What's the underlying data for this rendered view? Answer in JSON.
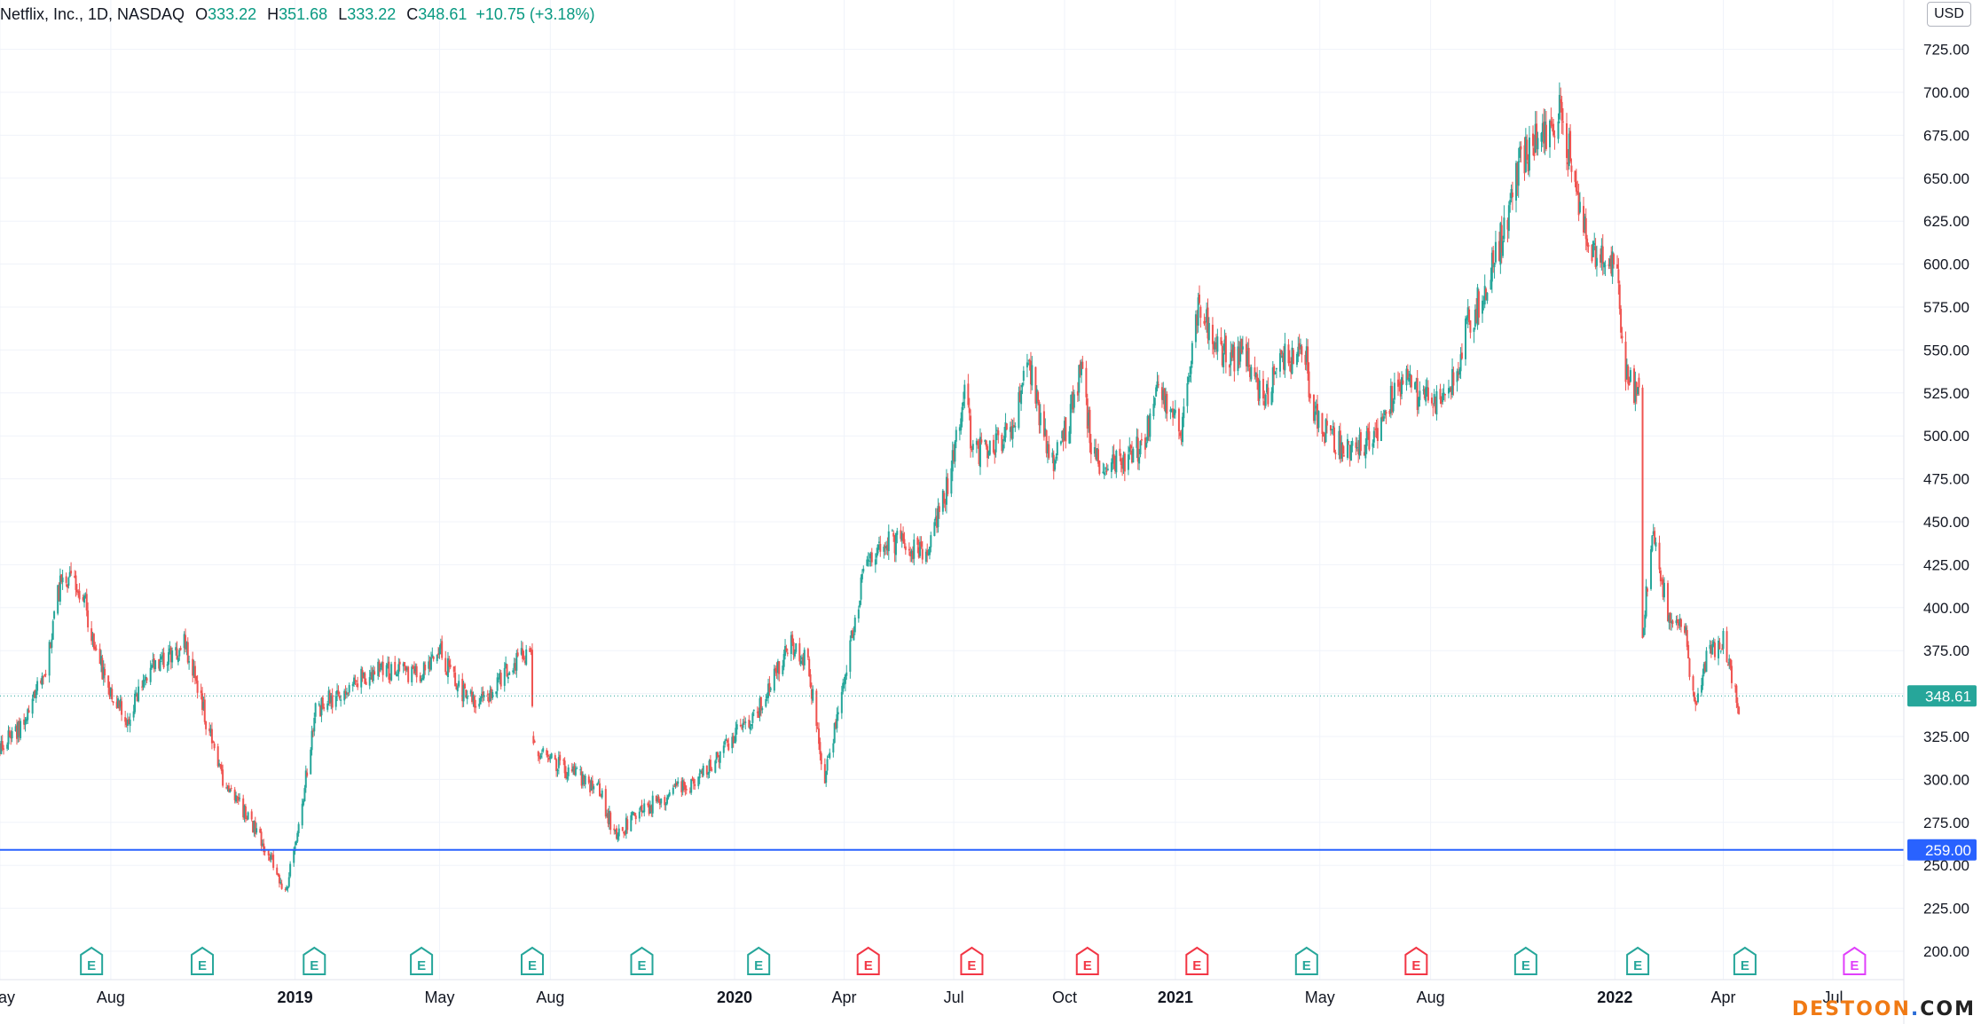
{
  "header": {
    "symbol": "Netflix, Inc., 1D, NASDAQ",
    "open_label": "O",
    "open": "333.22",
    "high_label": "H",
    "high": "351.68",
    "low_label": "L",
    "low": "333.22",
    "close_label": "C",
    "close": "348.61",
    "change": "+10.75 (+3.18%)"
  },
  "currency": "USD",
  "watermark": {
    "main": "DESTOON",
    "dot": ".",
    "tld": "COM"
  },
  "colors": {
    "up": "#26a69a",
    "down": "#ef5350",
    "grid": "#f0f3fa",
    "axis_text": "#131722",
    "price_line": "#26a69a",
    "horizontal_line": "#2962ff",
    "earnings_past": "#26a69a",
    "earnings_future": "#e040fb",
    "earnings_miss": "#f23645"
  },
  "chart_data": {
    "type": "candlestick",
    "x_range": [
      "2018-05",
      "2022-07"
    ],
    "ylim": [
      190,
      732
    ],
    "y_ticks": [
      200,
      225,
      250,
      275,
      300,
      325,
      350,
      375,
      400,
      425,
      450,
      475,
      500,
      525,
      550,
      575,
      600,
      625,
      650,
      675,
      700,
      725
    ],
    "y_tick_labels": [
      "200.00",
      "225.00",
      "250.00",
      "275.00",
      "300.00",
      "325.00",
      "350.00",
      "375.00",
      "400.00",
      "425.00",
      "450.00",
      "475.00",
      "500.00",
      "525.00",
      "550.00",
      "575.00",
      "600.00",
      "625.00",
      "650.00",
      "675.00",
      "700.00",
      "725.00"
    ],
    "x_ticks": [
      {
        "date": "2018-05",
        "label": "May",
        "bold": false
      },
      {
        "date": "2018-08",
        "label": "Aug",
        "bold": false
      },
      {
        "date": "2019-01",
        "label": "2019",
        "bold": true
      },
      {
        "date": "2019-05",
        "label": "May",
        "bold": false
      },
      {
        "date": "2019-08",
        "label": "Aug",
        "bold": false
      },
      {
        "date": "2020-01",
        "label": "2020",
        "bold": true
      },
      {
        "date": "2020-04",
        "label": "Apr",
        "bold": false
      },
      {
        "date": "2020-07",
        "label": "Jul",
        "bold": false
      },
      {
        "date": "2020-10",
        "label": "Oct",
        "bold": false
      },
      {
        "date": "2021-01",
        "label": "2021",
        "bold": true
      },
      {
        "date": "2021-05",
        "label": "May",
        "bold": false
      },
      {
        "date": "2021-08",
        "label": "Aug",
        "bold": false
      },
      {
        "date": "2022-01",
        "label": "2022",
        "bold": true
      },
      {
        "date": "2022-04",
        "label": "Apr",
        "bold": false
      },
      {
        "date": "2022-07",
        "label": "Jul",
        "bold": false
      }
    ],
    "price_anchors": [
      [
        "2018-05",
        320
      ],
      [
        "2018-05-20",
        330
      ],
      [
        "2018-06-10",
        370
      ],
      [
        "2018-06-21",
        420
      ],
      [
        "2018-07-10",
        405
      ],
      [
        "2018-07-17",
        380
      ],
      [
        "2018-07-30",
        355
      ],
      [
        "2018-08-15",
        335
      ],
      [
        "2018-09-01",
        365
      ],
      [
        "2018-09-15",
        370
      ],
      [
        "2018-10-01",
        380
      ],
      [
        "2018-10-15",
        345
      ],
      [
        "2018-11-01",
        300
      ],
      [
        "2018-12-01",
        270
      ],
      [
        "2018-12-24",
        235
      ],
      [
        "2019-01-04",
        270
      ],
      [
        "2019-01-18",
        340
      ],
      [
        "2019-02-15",
        355
      ],
      [
        "2019-03-15",
        365
      ],
      [
        "2019-04-15",
        360
      ],
      [
        "2019-05-01",
        375
      ],
      [
        "2019-05-20",
        350
      ],
      [
        "2019-06-10",
        345
      ],
      [
        "2019-06-25",
        365
      ],
      [
        "2019-07-16",
        375
      ],
      [
        "2019-07-18",
        320
      ],
      [
        "2019-08-15",
        305
      ],
      [
        "2019-09-10",
        295
      ],
      [
        "2019-09-25",
        265
      ],
      [
        "2019-10-10",
        280
      ],
      [
        "2019-11-05",
        290
      ],
      [
        "2019-12-01",
        300
      ],
      [
        "2019-12-31",
        325
      ],
      [
        "2020-01-20",
        340
      ],
      [
        "2020-02-15",
        380
      ],
      [
        "2020-03-01",
        370
      ],
      [
        "2020-03-16",
        300
      ],
      [
        "2020-04-01",
        360
      ],
      [
        "2020-04-20",
        430
      ],
      [
        "2020-05-15",
        440
      ],
      [
        "2020-06-10",
        430
      ],
      [
        "2020-06-25",
        470
      ],
      [
        "2020-07-10",
        525
      ],
      [
        "2020-07-17",
        490
      ],
      [
        "2020-08-05",
        495
      ],
      [
        "2020-08-20",
        505
      ],
      [
        "2020-09-01",
        545
      ],
      [
        "2020-09-20",
        480
      ],
      [
        "2020-10-05",
        510
      ],
      [
        "2020-10-15",
        540
      ],
      [
        "2020-10-25",
        485
      ],
      [
        "2020-11-15",
        485
      ],
      [
        "2020-12-05",
        495
      ],
      [
        "2020-12-20",
        530
      ],
      [
        "2021-01-05",
        500
      ],
      [
        "2021-01-20",
        575
      ],
      [
        "2021-02-05",
        550
      ],
      [
        "2021-03-01",
        545
      ],
      [
        "2021-03-15",
        520
      ],
      [
        "2021-04-01",
        545
      ],
      [
        "2021-04-20",
        545
      ],
      [
        "2021-04-22",
        515
      ],
      [
        "2021-05-15",
        495
      ],
      [
        "2021-06-10",
        495
      ],
      [
        "2021-07-10",
        535
      ],
      [
        "2021-07-25",
        520
      ],
      [
        "2021-08-15",
        520
      ],
      [
        "2021-09-01",
        565
      ],
      [
        "2021-09-15",
        585
      ],
      [
        "2021-10-01",
        620
      ],
      [
        "2021-10-15",
        660
      ],
      [
        "2021-11-01",
        675
      ],
      [
        "2021-11-17",
        690
      ],
      [
        "2021-12-01",
        640
      ],
      [
        "2021-12-15",
        605
      ],
      [
        "2022-01-01",
        605
      ],
      [
        "2022-01-10",
        540
      ],
      [
        "2022-01-21",
        520
      ],
      [
        "2022-01-24",
        385
      ],
      [
        "2022-02-01",
        445
      ],
      [
        "2022-02-15",
        395
      ],
      [
        "2022-03-01",
        385
      ],
      [
        "2022-03-08",
        340
      ],
      [
        "2022-03-20",
        375
      ],
      [
        "2022-04-01",
        380
      ],
      [
        "2022-04-14",
        340
      ]
    ],
    "gaps": [
      [
        "2019-07-18",
        "2019-07-23"
      ],
      [
        "2022-01-21",
        "2022-01-24"
      ]
    ],
    "last_price": 348.61,
    "last_price_label": "348.61",
    "horizontal_line": 259.0,
    "horizontal_line_label": "259.00",
    "earnings_label": "E",
    "earnings_markers": [
      {
        "date": "2018-07-16",
        "kind": "past"
      },
      {
        "date": "2018-10-16",
        "kind": "past"
      },
      {
        "date": "2019-01-17",
        "kind": "past"
      },
      {
        "date": "2019-04-16",
        "kind": "past"
      },
      {
        "date": "2019-07-17",
        "kind": "past"
      },
      {
        "date": "2019-10-16",
        "kind": "past"
      },
      {
        "date": "2020-01-21",
        "kind": "past"
      },
      {
        "date": "2020-04-21",
        "kind": "miss"
      },
      {
        "date": "2020-07-16",
        "kind": "miss"
      },
      {
        "date": "2020-10-20",
        "kind": "miss"
      },
      {
        "date": "2021-01-19",
        "kind": "miss"
      },
      {
        "date": "2021-04-20",
        "kind": "past"
      },
      {
        "date": "2021-07-20",
        "kind": "miss"
      },
      {
        "date": "2021-10-19",
        "kind": "past"
      },
      {
        "date": "2022-01-20",
        "kind": "past"
      },
      {
        "date": "2022-04-19",
        "kind": "past"
      },
      {
        "date": "2022-07-19",
        "kind": "future"
      }
    ]
  }
}
